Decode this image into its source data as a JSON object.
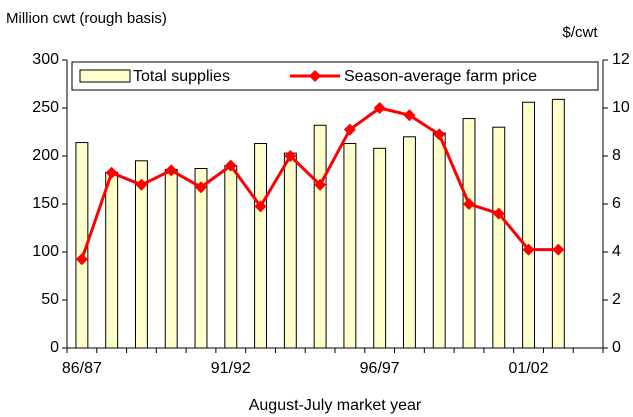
{
  "chart_data": {
    "type": "bar-line",
    "y_label": "Million cwt (rough basis)",
    "y2_label": "$/cwt",
    "x_label": "August-July market year",
    "categories": [
      "86/87",
      null,
      null,
      null,
      null,
      "91/92",
      null,
      null,
      null,
      null,
      "96/97",
      null,
      null,
      null,
      null,
      "01/02",
      null
    ],
    "series": [
      {
        "name": "Total supplies",
        "type": "bar",
        "color": "#ffffcc",
        "values": [
          214,
          183,
          195,
          186,
          187,
          190,
          213,
          203,
          232,
          213,
          208,
          220,
          224,
          239,
          230,
          256,
          259
        ]
      },
      {
        "name": "Season-average farm price",
        "type": "line",
        "axis": "y2",
        "color": "#ff0000",
        "values": [
          3.7,
          7.3,
          6.8,
          7.4,
          6.7,
          7.6,
          5.9,
          8.0,
          6.8,
          9.1,
          10.0,
          9.7,
          8.9,
          6.0,
          5.6,
          4.1,
          4.1
        ]
      }
    ],
    "ylim": [
      0,
      300
    ],
    "yticks": [
      0,
      50,
      100,
      150,
      200,
      250,
      300
    ],
    "y2lim": [
      0,
      12
    ],
    "y2ticks": [
      0,
      2,
      4,
      6,
      8,
      10,
      12
    ],
    "grid": false,
    "legend": "top"
  }
}
